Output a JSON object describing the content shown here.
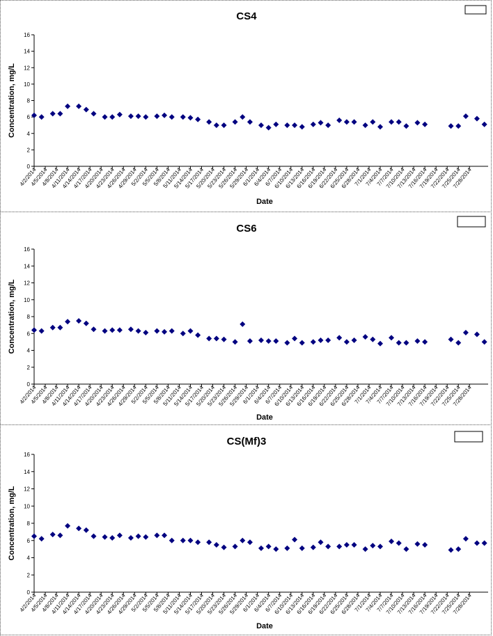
{
  "chart_data": [
    {
      "type": "scatter",
      "title": "CS4",
      "xlabel": "Date",
      "ylabel": "Concentration, mg/L",
      "ylim": [
        0,
        16
      ],
      "yticks": [
        0,
        2,
        4,
        6,
        8,
        10,
        12,
        14,
        16
      ],
      "xtick_labels": [
        "4/2/2014",
        "4/5/2014",
        "4/8/2014",
        "4/11/2014",
        "4/14/2014",
        "4/17/2014",
        "4/20/2014",
        "4/23/2014",
        "4/26/2014",
        "4/29/2014",
        "5/2/2014",
        "5/5/2014",
        "5/8/2014",
        "5/11/2014",
        "5/14/2014",
        "5/17/2014",
        "5/20/2014",
        "5/23/2014",
        "5/26/2014",
        "5/29/2014",
        "6/1/2014",
        "6/4/2014",
        "6/7/2014",
        "6/10/2014",
        "6/13/2014",
        "6/16/2014",
        "6/19/2014",
        "6/22/2014",
        "6/25/2014",
        "6/28/2014",
        "7/1/2014",
        "7/4/2014",
        "7/7/2014",
        "7/10/2014",
        "7/13/2014",
        "7/16/2014",
        "7/19/2014",
        "7/22/2014",
        "7/25/2014",
        "7/28/2014"
      ],
      "marker_color": "#000080",
      "legend": "top-right",
      "points": [
        [
          "4/2/2014",
          6.2
        ],
        [
          "4/4/2014",
          6.0
        ],
        [
          "4/7/2014",
          6.4
        ],
        [
          "4/9/2014",
          6.4
        ],
        [
          "4/11/2014",
          7.3
        ],
        [
          "4/14/2014",
          7.3
        ],
        [
          "4/16/2014",
          6.9
        ],
        [
          "4/18/2014",
          6.4
        ],
        [
          "4/21/2014",
          6.0
        ],
        [
          "4/23/2014",
          6.0
        ],
        [
          "4/25/2014",
          6.3
        ],
        [
          "4/28/2014",
          6.1
        ],
        [
          "4/30/2014",
          6.1
        ],
        [
          "5/2/2014",
          6.0
        ],
        [
          "5/5/2014",
          6.1
        ],
        [
          "5/7/2014",
          6.2
        ],
        [
          "5/9/2014",
          6.0
        ],
        [
          "5/12/2014",
          6.0
        ],
        [
          "5/14/2014",
          5.9
        ],
        [
          "5/16/2014",
          5.7
        ],
        [
          "5/19/2014",
          5.4
        ],
        [
          "5/21/2014",
          5.0
        ],
        [
          "5/23/2014",
          5.0
        ],
        [
          "5/26/2014",
          5.4
        ],
        [
          "5/28/2014",
          6.0
        ],
        [
          "5/30/2014",
          5.4
        ],
        [
          "6/2/2014",
          5.0
        ],
        [
          "6/4/2014",
          4.7
        ],
        [
          "6/6/2014",
          5.1
        ],
        [
          "6/9/2014",
          5.0
        ],
        [
          "6/11/2014",
          5.0
        ],
        [
          "6/13/2014",
          4.8
        ],
        [
          "6/16/2014",
          5.1
        ],
        [
          "6/18/2014",
          5.3
        ],
        [
          "6/20/2014",
          5.0
        ],
        [
          "6/23/2014",
          5.6
        ],
        [
          "6/25/2014",
          5.4
        ],
        [
          "6/27/2014",
          5.4
        ],
        [
          "6/30/2014",
          5.0
        ],
        [
          "7/2/2014",
          5.4
        ],
        [
          "7/4/2014",
          4.8
        ],
        [
          "7/7/2014",
          5.4
        ],
        [
          "7/9/2014",
          5.4
        ],
        [
          "7/11/2014",
          4.9
        ],
        [
          "7/14/2014",
          5.3
        ],
        [
          "7/16/2014",
          5.1
        ],
        [
          "7/23/2014",
          4.9
        ],
        [
          "7/25/2014",
          4.9
        ],
        [
          "7/27/2014",
          6.1
        ],
        [
          "7/30/2014",
          5.8
        ],
        [
          "8/1/2014",
          5.1
        ]
      ]
    },
    {
      "type": "scatter",
      "title": "CS6",
      "xlabel": "Date",
      "ylabel": "Concentration, mg/L",
      "ylim": [
        0,
        16
      ],
      "yticks": [
        0,
        2,
        4,
        6,
        8,
        10,
        12,
        14,
        16
      ],
      "xtick_labels": [
        "4/2/2014",
        "4/5/2014",
        "4/8/2014",
        "4/11/2014",
        "4/14/2014",
        "4/17/2014",
        "4/20/2014",
        "4/23/2014",
        "4/26/2014",
        "4/29/2014",
        "5/2/2014",
        "5/5/2014",
        "5/8/2014",
        "5/11/2014",
        "5/14/2014",
        "5/17/2014",
        "5/20/2014",
        "5/23/2014",
        "5/26/2014",
        "5/29/2014",
        "6/1/2014",
        "6/4/2014",
        "6/7/2014",
        "6/10/2014",
        "6/13/2014",
        "6/16/2014",
        "6/19/2014",
        "6/22/2014",
        "6/25/2014",
        "6/28/2014",
        "7/1/2014",
        "7/4/2014",
        "7/7/2014",
        "7/10/2014",
        "7/13/2014",
        "7/16/2014",
        "7/19/2014",
        "7/22/2014",
        "7/25/2014",
        "7/28/2014"
      ],
      "marker_color": "#000080",
      "legend": "top-right",
      "points": [
        [
          "4/2/2014",
          6.4
        ],
        [
          "4/4/2014",
          6.3
        ],
        [
          "4/7/2014",
          6.7
        ],
        [
          "4/9/2014",
          6.7
        ],
        [
          "4/11/2014",
          7.4
        ],
        [
          "4/14/2014",
          7.5
        ],
        [
          "4/16/2014",
          7.2
        ],
        [
          "4/18/2014",
          6.5
        ],
        [
          "4/21/2014",
          6.3
        ],
        [
          "4/23/2014",
          6.4
        ],
        [
          "4/25/2014",
          6.4
        ],
        [
          "4/28/2014",
          6.5
        ],
        [
          "4/30/2014",
          6.3
        ],
        [
          "5/2/2014",
          6.1
        ],
        [
          "5/5/2014",
          6.3
        ],
        [
          "5/7/2014",
          6.2
        ],
        [
          "5/9/2014",
          6.3
        ],
        [
          "5/12/2014",
          6.0
        ],
        [
          "5/14/2014",
          6.3
        ],
        [
          "5/16/2014",
          5.8
        ],
        [
          "5/19/2014",
          5.4
        ],
        [
          "5/21/2014",
          5.4
        ],
        [
          "5/23/2014",
          5.3
        ],
        [
          "5/26/2014",
          5.0
        ],
        [
          "5/28/2014",
          7.1
        ],
        [
          "5/30/2014",
          5.1
        ],
        [
          "6/2/2014",
          5.2
        ],
        [
          "6/4/2014",
          5.1
        ],
        [
          "6/6/2014",
          5.1
        ],
        [
          "6/9/2014",
          4.9
        ],
        [
          "6/11/2014",
          5.4
        ],
        [
          "6/13/2014",
          4.9
        ],
        [
          "6/16/2014",
          5.0
        ],
        [
          "6/18/2014",
          5.2
        ],
        [
          "6/20/2014",
          5.2
        ],
        [
          "6/23/2014",
          5.5
        ],
        [
          "6/25/2014",
          5.0
        ],
        [
          "6/27/2014",
          5.2
        ],
        [
          "6/30/2014",
          5.6
        ],
        [
          "7/2/2014",
          5.3
        ],
        [
          "7/4/2014",
          4.8
        ],
        [
          "7/7/2014",
          5.5
        ],
        [
          "7/9/2014",
          4.9
        ],
        [
          "7/11/2014",
          4.9
        ],
        [
          "7/14/2014",
          5.1
        ],
        [
          "7/16/2014",
          5.0
        ],
        [
          "7/23/2014",
          5.3
        ],
        [
          "7/25/2014",
          4.9
        ],
        [
          "7/27/2014",
          6.1
        ],
        [
          "7/30/2014",
          5.9
        ],
        [
          "8/1/2014",
          5.0
        ]
      ]
    },
    {
      "type": "scatter",
      "title": "CS(Mf)3",
      "xlabel": "Date",
      "ylabel": "Concentration, mg/L",
      "ylim": [
        0,
        16
      ],
      "yticks": [
        0,
        2,
        4,
        6,
        8,
        10,
        12,
        14,
        16
      ],
      "xtick_labels": [
        "4/2/2014",
        "4/5/2014",
        "4/8/2014",
        "4/11/2014",
        "4/14/2014",
        "4/17/2014",
        "4/20/2014",
        "4/23/2014",
        "4/26/2014",
        "4/29/2014",
        "5/2/2014",
        "5/5/2014",
        "5/8/2014",
        "5/11/2014",
        "5/14/2014",
        "5/17/2014",
        "5/20/2014",
        "5/23/2014",
        "5/26/2014",
        "5/29/2014",
        "6/1/2014",
        "6/4/2014",
        "6/7/2014",
        "6/10/2014",
        "6/13/2014",
        "6/16/2014",
        "6/19/2014",
        "6/22/2014",
        "6/25/2014",
        "6/28/2014",
        "7/1/2014",
        "7/4/2014",
        "7/7/2014",
        "7/10/2014",
        "7/13/2014",
        "7/16/2014",
        "7/19/2014",
        "7/22/2014",
        "7/25/2014",
        "7/28/2014"
      ],
      "marker_color": "#000080",
      "legend": "top-right",
      "points": [
        [
          "4/2/2014",
          6.5
        ],
        [
          "4/4/2014",
          6.2
        ],
        [
          "4/7/2014",
          6.7
        ],
        [
          "4/9/2014",
          6.6
        ],
        [
          "4/11/2014",
          7.7
        ],
        [
          "4/14/2014",
          7.4
        ],
        [
          "4/16/2014",
          7.2
        ],
        [
          "4/18/2014",
          6.5
        ],
        [
          "4/21/2014",
          6.4
        ],
        [
          "4/23/2014",
          6.3
        ],
        [
          "4/25/2014",
          6.6
        ],
        [
          "4/28/2014",
          6.3
        ],
        [
          "4/30/2014",
          6.5
        ],
        [
          "5/2/2014",
          6.4
        ],
        [
          "5/5/2014",
          6.6
        ],
        [
          "5/7/2014",
          6.6
        ],
        [
          "5/9/2014",
          6.0
        ],
        [
          "5/12/2014",
          6.0
        ],
        [
          "5/14/2014",
          6.0
        ],
        [
          "5/16/2014",
          5.8
        ],
        [
          "5/19/2014",
          5.8
        ],
        [
          "5/21/2014",
          5.5
        ],
        [
          "5/23/2014",
          5.2
        ],
        [
          "5/26/2014",
          5.3
        ],
        [
          "5/28/2014",
          6.0
        ],
        [
          "5/30/2014",
          5.8
        ],
        [
          "6/2/2014",
          5.1
        ],
        [
          "6/4/2014",
          5.3
        ],
        [
          "6/6/2014",
          5.0
        ],
        [
          "6/9/2014",
          5.1
        ],
        [
          "6/11/2014",
          6.1
        ],
        [
          "6/13/2014",
          5.1
        ],
        [
          "6/16/2014",
          5.2
        ],
        [
          "6/18/2014",
          5.8
        ],
        [
          "6/20/2014",
          5.3
        ],
        [
          "6/23/2014",
          5.3
        ],
        [
          "6/25/2014",
          5.5
        ],
        [
          "6/27/2014",
          5.5
        ],
        [
          "6/30/2014",
          5.0
        ],
        [
          "7/2/2014",
          5.4
        ],
        [
          "7/4/2014",
          5.3
        ],
        [
          "7/7/2014",
          5.9
        ],
        [
          "7/9/2014",
          5.7
        ],
        [
          "7/11/2014",
          5.0
        ],
        [
          "7/14/2014",
          5.6
        ],
        [
          "7/16/2014",
          5.5
        ],
        [
          "7/23/2014",
          4.9
        ],
        [
          "7/25/2014",
          5.0
        ],
        [
          "7/27/2014",
          6.2
        ],
        [
          "7/30/2014",
          5.7
        ],
        [
          "8/1/2014",
          5.7
        ]
      ]
    }
  ]
}
